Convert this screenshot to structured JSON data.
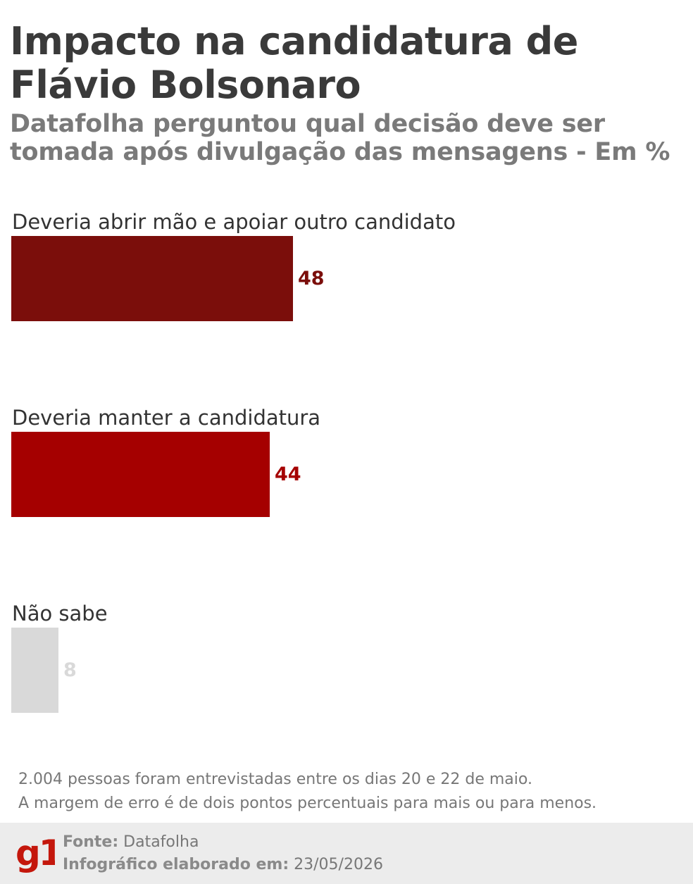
{
  "title": "Impacto na candidatura de Flávio Bolsonaro",
  "subtitle": "Datafolha perguntou qual decisão deve ser tomada após divulgação das mensagens - Em %",
  "chart_data": {
    "type": "bar",
    "orientation": "horizontal",
    "categories": [
      "Deveria abrir mão e apoiar outro candidato",
      "Deveria manter a candidatura",
      "Não sabe"
    ],
    "values": [
      48,
      44,
      8
    ],
    "value_labels": [
      "48",
      "44",
      "8"
    ],
    "colors": [
      "#7b0e0b",
      "#a50000",
      "#d9d9d9"
    ],
    "value_colors": [
      "#7b0e0b",
      "#a50000",
      "#d9d9d9"
    ],
    "xlim": [
      0,
      100
    ],
    "grid": false,
    "legend": "none"
  },
  "notes": {
    "line1": "2.004 pessoas foram entrevistadas entre os dias 20 e 22 de maio.",
    "line2": "A margem de erro é de dois pontos percentuais para mais ou para menos."
  },
  "footer": {
    "logo_text": "g1",
    "logo_color": "#c4170c",
    "source_label": "Fonte:",
    "source_value": "Datafolha",
    "date_label": "Infográfico elaborado em:",
    "date_value": "23/05/2026"
  }
}
